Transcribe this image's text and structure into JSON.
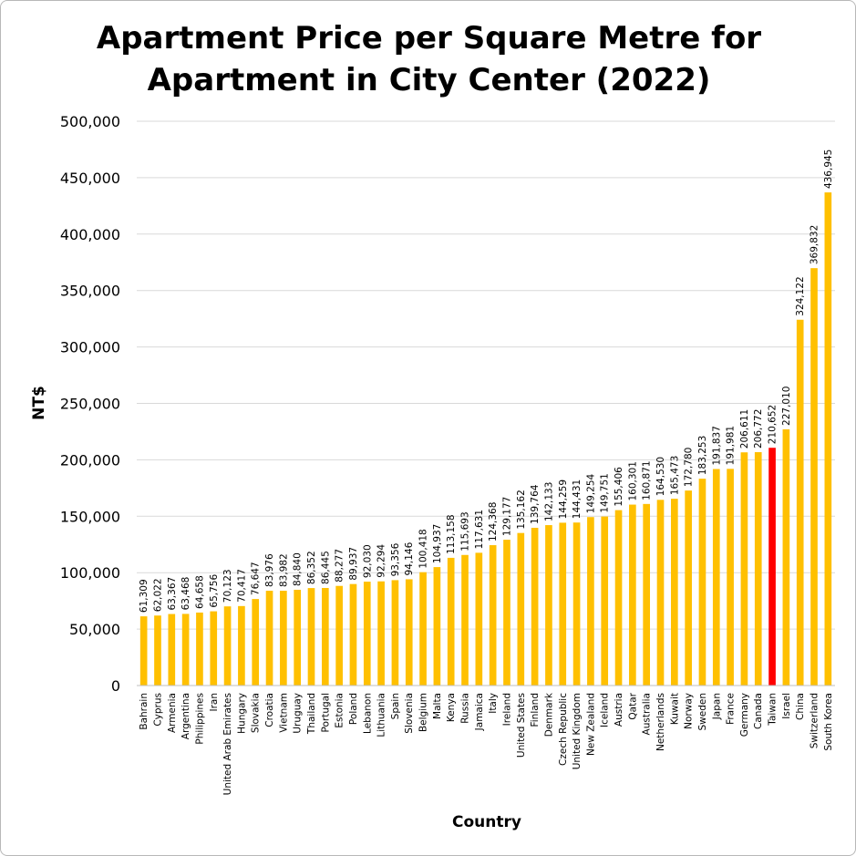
{
  "chart_data": {
    "type": "bar",
    "title_line1": "Apartment Price per Square Metre for",
    "title_line2": "Apartment in City Center (2022)",
    "xlabel": "Country",
    "ylabel": "NT$",
    "ylim": [
      0,
      500000
    ],
    "yticks": [
      0,
      50000,
      100000,
      150000,
      200000,
      250000,
      300000,
      350000,
      400000,
      450000,
      500000
    ],
    "ytick_labels": [
      "0",
      "50,000",
      "100,000",
      "150,000",
      "200,000",
      "250,000",
      "300,000",
      "350,000",
      "400,000",
      "450,000",
      "500,000"
    ],
    "grid": "horizontal",
    "colors": {
      "default": "#FFC000",
      "highlight": "#FF0000"
    },
    "highlight": "Taiwan",
    "categories": [
      "Bahrain",
      "Cyprus",
      "Armenia",
      "Argentina",
      "Philippines",
      "Iran",
      "United Arab Emirates",
      "Hungary",
      "Slovakia",
      "Croatia",
      "Vietnam",
      "Uruguay",
      "Thailand",
      "Portugal",
      "Estonia",
      "Poland",
      "Lebanon",
      "Lithuania",
      "Spain",
      "Slovenia",
      "Belgium",
      "Malta",
      "Kenya",
      "Russia",
      "Jamaica",
      "Italy",
      "Ireland",
      "United States",
      "Finland",
      "Denmark",
      "Czech Republic",
      "United Kingdom",
      "New Zealand",
      "Iceland",
      "Austria",
      "Qatar",
      "Australia",
      "Netherlands",
      "Kuwait",
      "Norway",
      "Sweden",
      "Japan",
      "France",
      "Germany",
      "Canada",
      "Taiwan",
      "Israel",
      "China",
      "Switzerland",
      "South Korea"
    ],
    "values": [
      61309,
      62022,
      63367,
      63468,
      64658,
      65756,
      70123,
      70417,
      76647,
      83976,
      83982,
      84840,
      86352,
      86445,
      88277,
      89937,
      92030,
      92294,
      93356,
      94146,
      100418,
      104937,
      113158,
      115693,
      117631,
      124368,
      129177,
      135162,
      139764,
      142133,
      144259,
      144431,
      149254,
      149751,
      155406,
      160301,
      160871,
      164530,
      165473,
      172780,
      183253,
      191837,
      191981,
      206611,
      206772,
      210652,
      227010,
      324122,
      369832,
      436945
    ],
    "value_labels": [
      "61,309",
      "62,022",
      "63,367",
      "63,468",
      "64,658",
      "65,756",
      "70,123",
      "70,417",
      "76,647",
      "83,976",
      "83,982",
      "84,840",
      "86,352",
      "86,445",
      "88,277",
      "89,937",
      "92,030",
      "92,294",
      "93,356",
      "94,146",
      "100,418",
      "104,937",
      "113,158",
      "115,693",
      "117,631",
      "124,368",
      "129,177",
      "135,162",
      "139,764",
      "142,133",
      "144,259",
      "144,431",
      "149,254",
      "149,751",
      "155,406",
      "160,301",
      "160,871",
      "164,530",
      "165,473",
      "172,780",
      "183,253",
      "191,837",
      "191,981",
      "206,611",
      "206,772",
      "210,652",
      "227,010",
      "324,122",
      "369,832",
      "436,945"
    ]
  }
}
